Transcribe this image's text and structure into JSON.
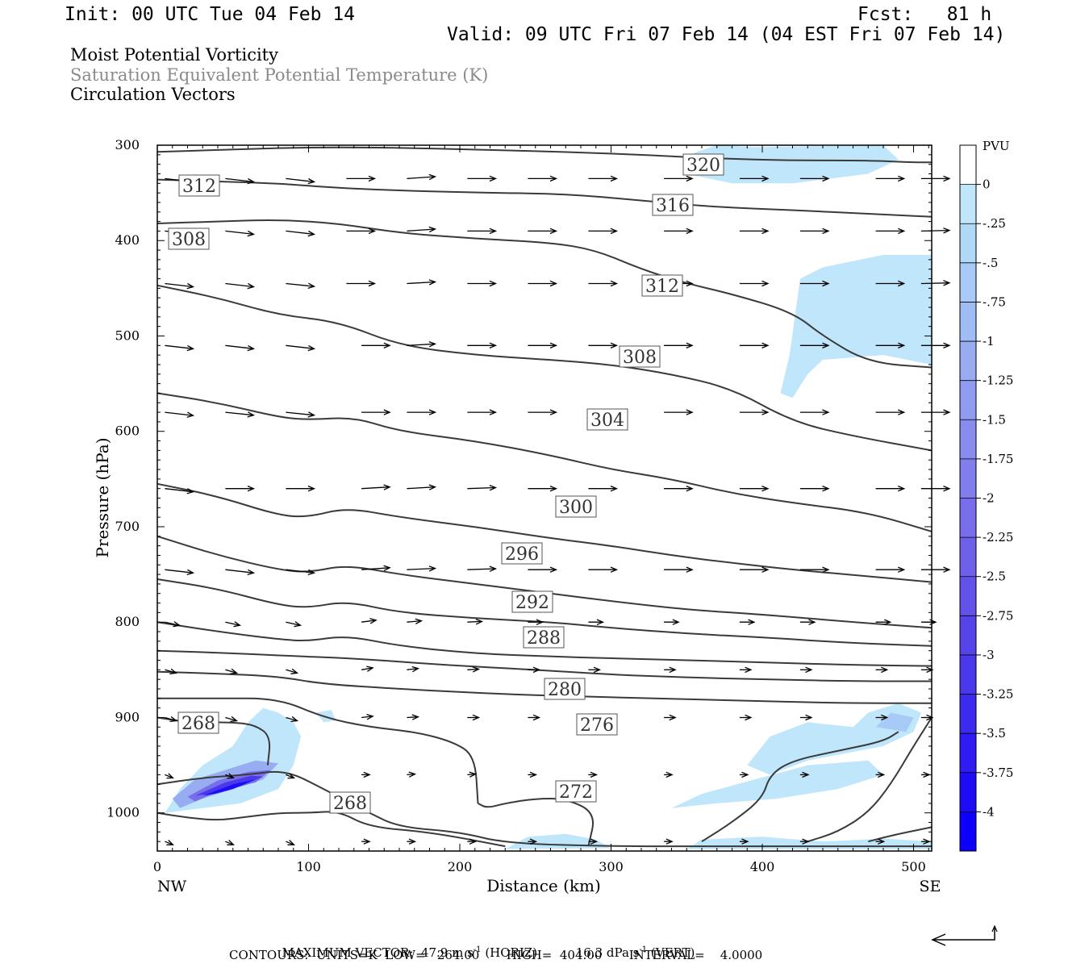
{
  "header": {
    "init": "Init: 00 UTC Tue 04 Feb 14",
    "fcst": "Fcst:   81 h",
    "valid": "Valid: 09 UTC Fri 07 Feb 14 (04 EST Fri 07 Feb 14)"
  },
  "fields": {
    "line1": "Moist Potential Vorticity",
    "line2": "Saturation Equivalent Potential Temperature (K)",
    "line3": "Circulation Vectors"
  },
  "footer": {
    "max_vector_label": "MAXIMUM VECTOR:",
    "max_vector_horiz": "47.9 m s",
    "horiz_tag": "(HORIZ)",
    "max_vector_vert": "16.3 dPa s",
    "vert_tag": "(VERT)",
    "superscript": "-1",
    "contours": "CONTOURS:  UNITS=K  LOW=   264.00       HIGH=  404.00       INTERVAL=    4.0000"
  },
  "chart_data": {
    "type": "cross-section",
    "ylabel": "Pressure (hPa)",
    "xlabel": "Distance (km)",
    "xlim": [
      0,
      512
    ],
    "ylim": [
      300,
      1040
    ],
    "y_reversed": true,
    "x_ticks": [
      0,
      100,
      200,
      300,
      400,
      500
    ],
    "y_ticks": [
      300,
      400,
      500,
      600,
      700,
      800,
      900,
      1000
    ],
    "x_end_labels": {
      "left": "NW",
      "right": "SE"
    },
    "colorbar": {
      "title": "PVU",
      "levels": [
        "0",
        "-.25",
        "-.5",
        "-.75",
        "-1",
        "-1.25",
        "-1.5",
        "-1.75",
        "-2",
        "-2.25",
        "-2.5",
        "-2.75",
        "-3",
        "-3.25",
        "-3.5",
        "-3.75",
        "-4"
      ],
      "colors": [
        "#ffffff",
        "#bfe6fa",
        "#b0d9f8",
        "#a8caf6",
        "#a0bcf4",
        "#98acf2",
        "#909cf0",
        "#888cee",
        "#807ded",
        "#786eeb",
        "#6e60ea",
        "#6252ea",
        "#5644ea",
        "#4a38ec",
        "#3c2aee",
        "#2e1cf2",
        "#1e0cf6",
        "#0c00fa"
      ]
    },
    "theta_e_contours": [
      {
        "label": "320",
        "points": [
          [
            0,
            307
          ],
          [
            40,
            305
          ],
          [
            80,
            303
          ],
          [
            120,
            302
          ],
          [
            170,
            303
          ],
          [
            220,
            305
          ],
          [
            270,
            307
          ],
          [
            320,
            310
          ],
          [
            370,
            314
          ],
          [
            420,
            316
          ],
          [
            470,
            316
          ],
          [
            500,
            318
          ],
          [
            512,
            318
          ]
        ]
      },
      {
        "label": "316",
        "points": [
          [
            0,
            336
          ],
          [
            40,
            338
          ],
          [
            80,
            340
          ],
          [
            120,
            345
          ],
          [
            170,
            348
          ],
          [
            220,
            350
          ],
          [
            270,
            351
          ],
          [
            320,
            358
          ],
          [
            370,
            365
          ],
          [
            420,
            368
          ],
          [
            470,
            372
          ],
          [
            512,
            375
          ]
        ]
      },
      {
        "label": "312",
        "points": [
          [
            0,
            382
          ],
          [
            40,
            380
          ],
          [
            80,
            378
          ],
          [
            120,
            382
          ],
          [
            160,
            392
          ],
          [
            210,
            398
          ],
          [
            260,
            402
          ],
          [
            290,
            410
          ],
          [
            320,
            430
          ],
          [
            350,
            445
          ],
          [
            380,
            456
          ],
          [
            420,
            475
          ],
          [
            440,
            500
          ],
          [
            470,
            528
          ],
          [
            512,
            533
          ]
        ]
      },
      {
        "label": "308",
        "points": [
          [
            0,
            447
          ],
          [
            40,
            460
          ],
          [
            80,
            478
          ],
          [
            120,
            485
          ],
          [
            160,
            510
          ],
          [
            210,
            520
          ],
          [
            260,
            525
          ],
          [
            300,
            530
          ],
          [
            340,
            540
          ],
          [
            380,
            555
          ],
          [
            420,
            590
          ],
          [
            460,
            605
          ],
          [
            512,
            620
          ]
        ]
      },
      {
        "label": "304",
        "points": [
          [
            0,
            560
          ],
          [
            40,
            570
          ],
          [
            80,
            585
          ],
          [
            100,
            588
          ],
          [
            130,
            585
          ],
          [
            160,
            600
          ],
          [
            210,
            610
          ],
          [
            260,
            625
          ],
          [
            300,
            640
          ],
          [
            340,
            650
          ],
          [
            380,
            665
          ],
          [
            420,
            675
          ],
          [
            470,
            685
          ],
          [
            512,
            705
          ]
        ]
      },
      {
        "label": "300",
        "points": [
          [
            0,
            655
          ],
          [
            40,
            668
          ],
          [
            80,
            688
          ],
          [
            100,
            690
          ],
          [
            125,
            680
          ],
          [
            160,
            690
          ],
          [
            210,
            700
          ],
          [
            260,
            712
          ],
          [
            300,
            720
          ],
          [
            340,
            730
          ],
          [
            380,
            738
          ],
          [
            420,
            745
          ],
          [
            470,
            752
          ],
          [
            512,
            758
          ]
        ]
      },
      {
        "label": "296",
        "points": [
          [
            0,
            710
          ],
          [
            40,
            730
          ],
          [
            80,
            745
          ],
          [
            100,
            748
          ],
          [
            125,
            740
          ],
          [
            160,
            750
          ],
          [
            210,
            760
          ],
          [
            260,
            770
          ],
          [
            300,
            778
          ],
          [
            350,
            787
          ],
          [
            400,
            792
          ],
          [
            460,
            800
          ],
          [
            512,
            806
          ]
        ]
      },
      {
        "label": "292",
        "points": [
          [
            0,
            755
          ],
          [
            40,
            765
          ],
          [
            80,
            782
          ],
          [
            100,
            785
          ],
          [
            125,
            778
          ],
          [
            160,
            790
          ],
          [
            210,
            796
          ],
          [
            260,
            800
          ],
          [
            300,
            806
          ],
          [
            350,
            812
          ],
          [
            400,
            816
          ],
          [
            460,
            822
          ],
          [
            512,
            825
          ]
        ]
      },
      {
        "label": "288",
        "points": [
          [
            0,
            800
          ],
          [
            40,
            810
          ],
          [
            80,
            818
          ],
          [
            100,
            820
          ],
          [
            125,
            814
          ],
          [
            160,
            825
          ],
          [
            210,
            833
          ],
          [
            260,
            836
          ],
          [
            300,
            838
          ],
          [
            350,
            840
          ],
          [
            400,
            842
          ],
          [
            460,
            845
          ],
          [
            512,
            846
          ]
        ]
      },
      {
        "label": "280",
        "points": [
          [
            0,
            830
          ],
          [
            40,
            832
          ],
          [
            80,
            835
          ],
          [
            130,
            838
          ],
          [
            190,
            845
          ],
          [
            250,
            850
          ],
          [
            300,
            855
          ],
          [
            350,
            858
          ],
          [
            400,
            860
          ],
          [
            460,
            862
          ],
          [
            512,
            862
          ]
        ]
      },
      {
        "label": "276",
        "points": [
          [
            0,
            852
          ],
          [
            40,
            854
          ],
          [
            80,
            857
          ],
          [
            110,
            865
          ],
          [
            160,
            870
          ],
          [
            220,
            875
          ],
          [
            280,
            878
          ],
          [
            330,
            880
          ],
          [
            380,
            882
          ],
          [
            450,
            885
          ],
          [
            512,
            885
          ]
        ]
      }
    ],
    "contour_labels_extra": [
      "268",
      "268",
      "272"
    ],
    "max_vector": {
      "horiz": 47.9,
      "horiz_units": "m s-1",
      "vert": 16.3,
      "vert_units": "dPa s-1"
    },
    "contour_interval": {
      "units": "K",
      "low": 264.0,
      "high": 404.0,
      "interval": 4.0
    }
  }
}
